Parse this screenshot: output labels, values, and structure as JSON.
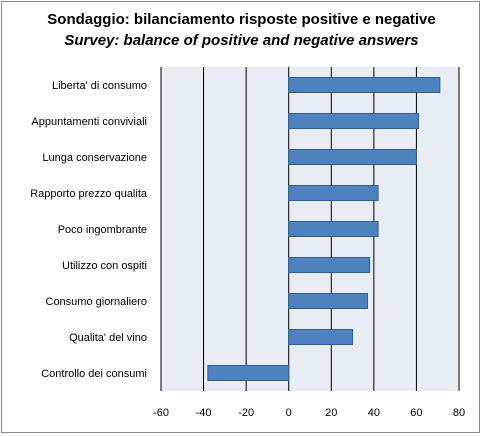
{
  "chart_data": {
    "type": "bar",
    "orientation": "horizontal",
    "title": "Sondaggio: bilanciamento risposte positive e negative",
    "subtitle": "Survey: balance of positive and negative answers",
    "categories": [
      "Liberta' di consumo",
      "Appuntamenti conviviali",
      "Lunga conservazione",
      "Rapporto prezzo qualita",
      "Poco ingombrante",
      "Utilizzo con ospiti",
      "Consumo giornaliero",
      "Qualita' del vino",
      "Controllo dei consumi"
    ],
    "values": [
      71,
      61,
      60,
      42,
      42,
      38,
      37,
      30,
      -38
    ],
    "xlim": [
      -60,
      80
    ],
    "xticks": [
      "-60",
      "-40",
      "-20",
      "0",
      "20",
      "40",
      "60",
      "80"
    ],
    "grid": true,
    "legend": "none",
    "colors": {
      "bar": "#4f81bd",
      "bar_edge": "#2f5f96",
      "plot_bg": "#e8edf4",
      "grid": "#000000"
    }
  }
}
